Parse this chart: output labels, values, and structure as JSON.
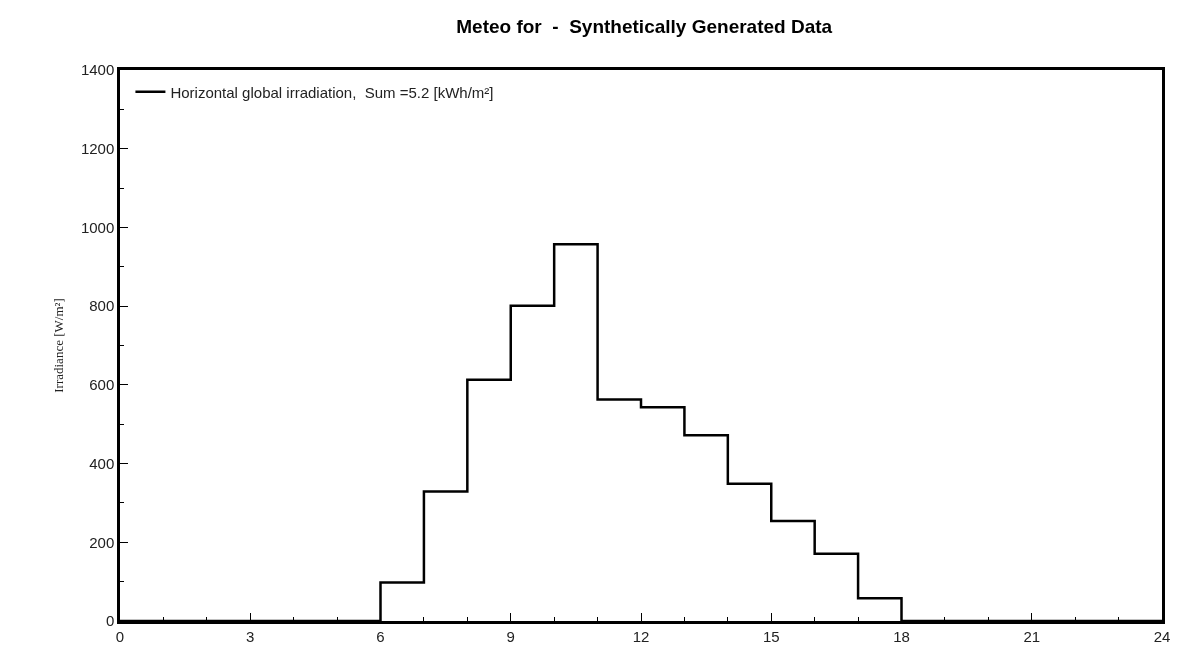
{
  "chart_data": {
    "type": "step",
    "title": "Meteo for  -  Synthetically Generated Data",
    "ylabel": "Irradiance [W/m²]",
    "x": [
      0,
      1,
      2,
      3,
      4,
      5,
      6,
      7,
      8,
      9,
      10,
      11,
      12,
      13,
      14,
      15,
      16,
      17,
      18,
      19,
      20,
      21,
      22,
      23,
      24
    ],
    "series": [
      {
        "name": "Horizontal global irradiation,  Sum =5.2 [kWh/m²]",
        "color": "#000000",
        "values": [
          0,
          0,
          0,
          0,
          0,
          0,
          98,
          329,
          613,
          801,
          957,
          563,
          543,
          472,
          349,
          254,
          171,
          58,
          0,
          0,
          0,
          0,
          0,
          0,
          0
        ]
      }
    ],
    "xlim": [
      0,
      24
    ],
    "xticks": [
      0,
      3,
      6,
      9,
      12,
      15,
      18,
      21,
      24
    ],
    "ylim": [
      0,
      1400
    ],
    "yticks": [
      0,
      200,
      400,
      600,
      800,
      1000,
      1200,
      1400
    ],
    "legend": "top left",
    "marker": "none",
    "line_style": "solid"
  }
}
